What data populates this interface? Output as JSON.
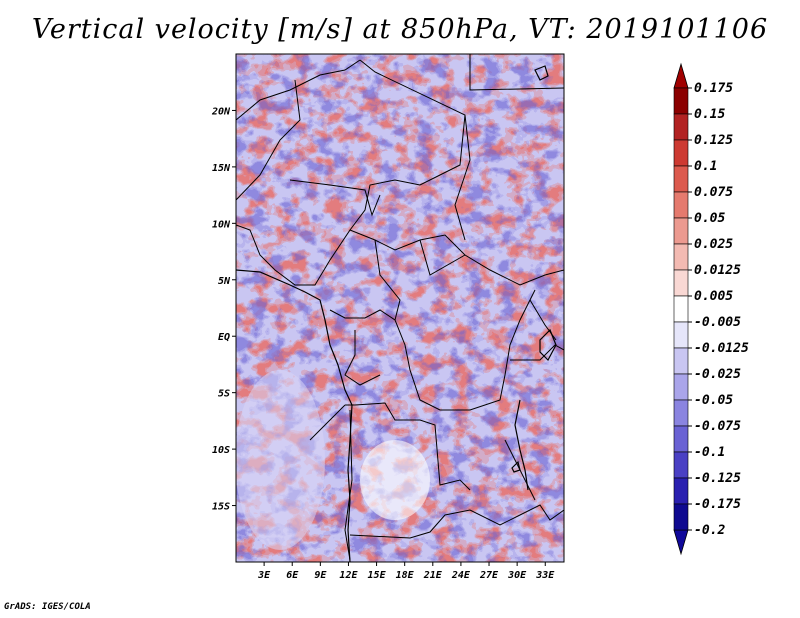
{
  "title": "Vertical velocity [m/s] at 850hPa, VT: 2019101106",
  "credit": "GrADS: IGES/COLA",
  "map": {
    "lat_labels": [
      "20N",
      "15N",
      "10N",
      "5N",
      "EQ",
      "5S",
      "10S",
      "15S"
    ],
    "lat_values": [
      20,
      15,
      10,
      5,
      0,
      -5,
      -10,
      -15
    ],
    "lon_labels": [
      "3E",
      "6E",
      "9E",
      "12E",
      "15E",
      "18E",
      "21E",
      "24E",
      "27E",
      "30E",
      "33E"
    ],
    "lon_values": [
      3,
      6,
      9,
      12,
      15,
      18,
      21,
      24,
      27,
      30,
      33
    ],
    "lon_range": [
      0,
      35
    ],
    "lat_range": [
      -20,
      25
    ],
    "field": "vertical velocity",
    "units": "m/s",
    "level": "850hPa",
    "valid_time": "2019101106"
  },
  "colorbar": {
    "labels": [
      "0.175",
      "0.15",
      "0.125",
      "0.1",
      "0.075",
      "0.05",
      "0.025",
      "0.0125",
      "0.005",
      "-0.005",
      "-0.0125",
      "-0.025",
      "-0.05",
      "-0.075",
      "-0.1",
      "-0.125",
      "-0.175",
      "-0.2"
    ],
    "colors": [
      "#8b0000",
      "#b22222",
      "#cd3a32",
      "#dc5a4e",
      "#e57a6e",
      "#ec9a90",
      "#f3bab2",
      "#f9d8d4",
      "#fcecea",
      "#ffffff",
      "#e6e6fa",
      "#c9c6f2",
      "#aaa5ea",
      "#8a84e0",
      "#6a62d4",
      "#4a40c4",
      "#2a20b0",
      "#0f0a90"
    ],
    "top_arrow_color": "#a00000",
    "bottom_arrow_color": "#10089a"
  }
}
